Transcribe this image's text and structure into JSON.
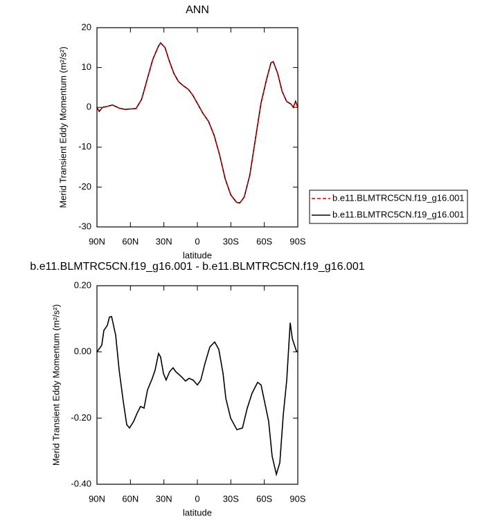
{
  "chart_data": [
    {
      "type": "line",
      "title": "ANN",
      "xlabel": "latitude",
      "ylabel": "Merid Transient Eddy Momentum (m²/s²)",
      "x": [
        90,
        88,
        85,
        80,
        76,
        70,
        65,
        60,
        55,
        50,
        45,
        40,
        35,
        33,
        29,
        25,
        21,
        17,
        13,
        8,
        4,
        0,
        -5,
        -10,
        -15,
        -20,
        -25,
        -30,
        -35,
        -38,
        -42,
        -47,
        -52,
        -57,
        -62,
        -66,
        -68,
        -72,
        -76,
        -80,
        -84,
        -86,
        -88,
        -90
      ],
      "series": [
        {
          "name": "b.e11.BLMTRC5CN.f19_g16.001",
          "color": "#000000",
          "line_style": "solid",
          "values": [
            0,
            -1,
            0,
            0.3,
            0.6,
            -0.2,
            -0.5,
            -0.4,
            -0.3,
            2,
            7,
            12,
            15.3,
            16.2,
            15,
            11.5,
            8.5,
            6.5,
            5.5,
            4.5,
            3,
            1,
            -1.5,
            -3.5,
            -7,
            -12,
            -18,
            -22,
            -23.8,
            -24,
            -22.5,
            -17,
            -8,
            1,
            7,
            11.2,
            11.5,
            8.5,
            4,
            1.5,
            0.8,
            0,
            1.5,
            0
          ]
        },
        {
          "name": "b.e11.BLMTRC5CN.f19_g16.001",
          "color": "#cc0000",
          "line_style": "dashed",
          "values": [
            0,
            -1,
            0,
            0.3,
            0.6,
            -0.2,
            -0.5,
            -0.4,
            -0.3,
            2,
            7,
            12,
            15.3,
            16.2,
            15,
            11.5,
            8.5,
            6.5,
            5.5,
            4.5,
            3,
            1,
            -1.5,
            -3.5,
            -7,
            -12,
            -18,
            -22,
            -23.8,
            -24,
            -22.5,
            -17,
            -8,
            1,
            7,
            11.2,
            11.5,
            8.5,
            4,
            1.5,
            0.8,
            0,
            1.5,
            0
          ]
        }
      ],
      "series_order_drawn": "first-to-last",
      "xlim": [
        90,
        -90
      ],
      "xticks": [
        {
          "value": 90,
          "label": "90N"
        },
        {
          "value": 60,
          "label": "60N"
        },
        {
          "value": 30,
          "label": "30N"
        },
        0,
        {
          "value": -30,
          "label": "30S"
        },
        {
          "value": -60,
          "label": "60S"
        },
        {
          "value": -90,
          "label": "90S"
        }
      ],
      "ylim": [
        -30,
        20
      ],
      "yticks": [
        -30,
        -20,
        -10,
        0,
        10,
        20
      ],
      "grid": false,
      "legend": "right"
    },
    {
      "type": "line",
      "title": "b.e11.BLMTRC5CN.f19_g16.001 - b.e11.BLMTRC5CN.f19_g16.001",
      "xlabel": "latitude",
      "ylabel": "Merid Transient Eddy Momentum (m²/s²)",
      "x": [
        90,
        85.7,
        83.8,
        80.7,
        78.8,
        76.9,
        73.2,
        70.1,
        66.4,
        63.3,
        60.8,
        57.1,
        54,
        50.9,
        47.8,
        44.7,
        40.4,
        37.9,
        34.8,
        33,
        30.4,
        28,
        24.9,
        21.8,
        19.3,
        14.3,
        10.6,
        7.5,
        3.8,
        0,
        -3.1,
        -6.8,
        -11.2,
        -15.5,
        -19.2,
        -23,
        -25.5,
        -29.8,
        -35.4,
        -40.4,
        -44.7,
        -49,
        -54,
        -57.1,
        -60.2,
        -63.9,
        -67,
        -70.8,
        -73.9,
        -77,
        -80.1,
        -83.2,
        -85.1,
        -88.8,
        -90
      ],
      "series": [
        {
          "color": "#000000",
          "line_style": "solid",
          "values": [
            0,
            0.02,
            0.065,
            0.08,
            0.105,
            0.107,
            0.05,
            -0.055,
            -0.15,
            -0.22,
            -0.23,
            -0.21,
            -0.185,
            -0.165,
            -0.17,
            -0.115,
            -0.08,
            -0.055,
            -0.005,
            -0.015,
            -0.065,
            -0.085,
            -0.06,
            -0.048,
            -0.06,
            -0.075,
            -0.088,
            -0.08,
            -0.085,
            -0.1,
            -0.085,
            -0.035,
            0.015,
            0.03,
            0.008,
            -0.065,
            -0.14,
            -0.2,
            -0.235,
            -0.23,
            -0.17,
            -0.125,
            -0.092,
            -0.1,
            -0.15,
            -0.21,
            -0.315,
            -0.37,
            -0.335,
            -0.19,
            -0.085,
            0.088,
            0.04,
            0.002,
            0
          ]
        }
      ],
      "xlim": [
        90,
        -90
      ],
      "xticks": [
        {
          "value": 90,
          "label": "90N"
        },
        {
          "value": 60,
          "label": "60N"
        },
        {
          "value": 30,
          "label": "30N"
        },
        0,
        {
          "value": -30,
          "label": "30S"
        },
        {
          "value": -60,
          "label": "60S"
        },
        {
          "value": -90,
          "label": "90S"
        }
      ],
      "ylim": [
        -0.4,
        0.2
      ],
      "yticks": [
        {
          "value": -0.4,
          "label": "-0.40"
        },
        {
          "value": -0.2,
          "label": "-0.20"
        },
        {
          "value": 0,
          "label": "0.00"
        },
        {
          "value": 0.2,
          "label": "0.20"
        }
      ],
      "grid": false
    }
  ]
}
